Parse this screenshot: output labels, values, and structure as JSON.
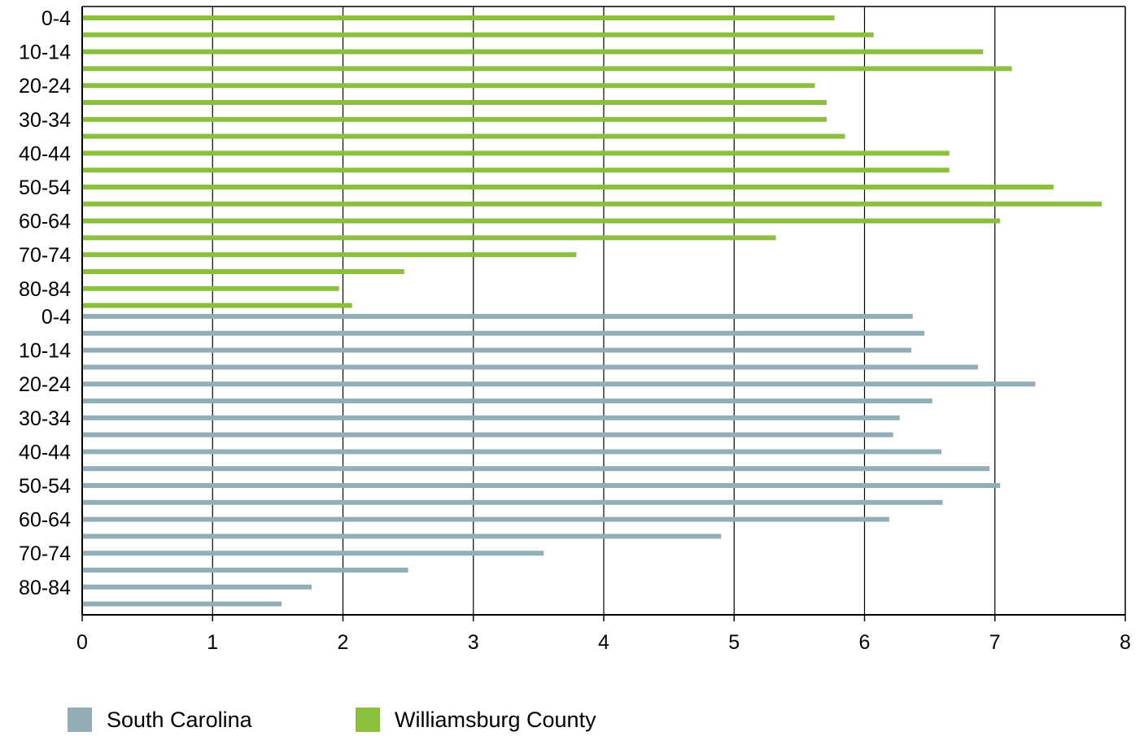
{
  "chart_data": {
    "type": "bar",
    "orientation": "horizontal",
    "grid": true,
    "legend_position": "bottom-left",
    "xlim": [
      0,
      8
    ],
    "x_ticks": [
      "0",
      "1",
      "2",
      "3",
      "4",
      "5",
      "6",
      "7",
      "8"
    ],
    "y_tick_labels": [
      "0-4",
      "10-14",
      "20-24",
      "30-34",
      "40-44",
      "50-54",
      "60-64",
      "70-74",
      "80-84",
      "0-4",
      "10-14",
      "20-24",
      "30-34",
      "40-44",
      "50-54",
      "60-64",
      "70-74",
      "80-84"
    ],
    "series": [
      {
        "name": "Williamsburg County",
        "color": "#8dbf3f",
        "values": [
          5.77,
          6.07,
          6.91,
          7.13,
          5.62,
          5.71,
          5.71,
          5.85,
          6.65,
          6.65,
          7.45,
          7.82,
          7.04,
          5.32,
          3.79,
          2.47,
          1.97,
          2.07
        ]
      },
      {
        "name": "South Carolina",
        "color": "#94aeb8",
        "values": [
          6.37,
          6.46,
          6.36,
          6.87,
          7.31,
          6.52,
          6.27,
          6.22,
          6.59,
          6.96,
          7.04,
          6.6,
          6.19,
          4.9,
          3.54,
          2.5,
          1.76,
          1.53
        ]
      }
    ]
  },
  "legend": {
    "items": [
      {
        "label": "South Carolina",
        "color": "#94aeb8"
      },
      {
        "label": "Williamsburg County",
        "color": "#8dbf3f"
      }
    ]
  }
}
